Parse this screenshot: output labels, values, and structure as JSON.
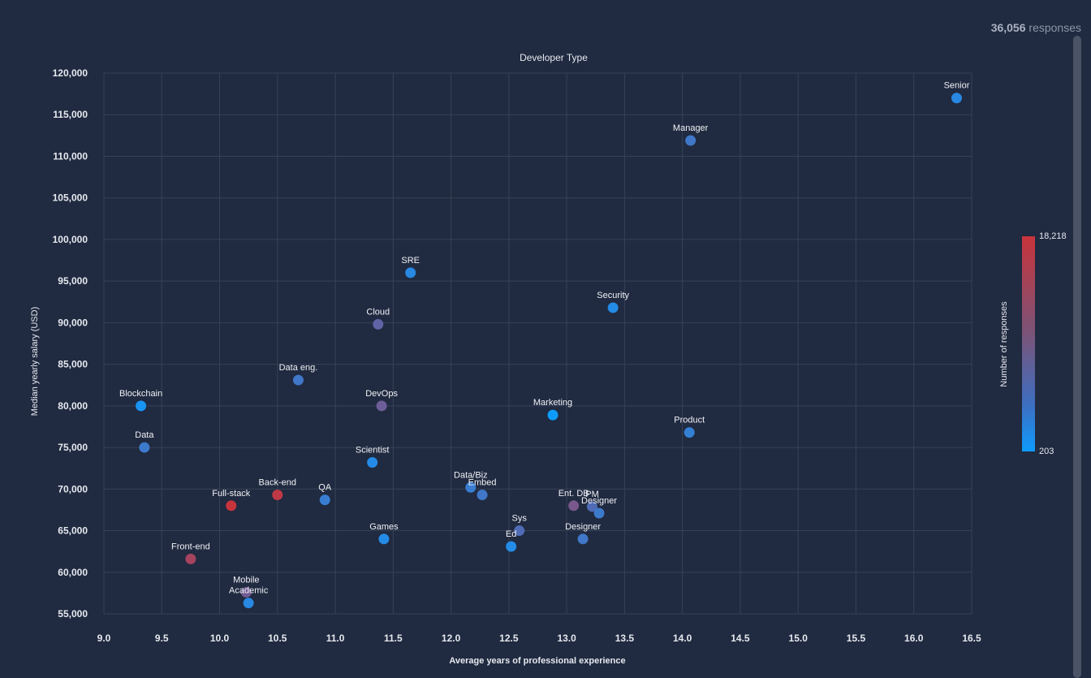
{
  "summary": {
    "count": "36,056",
    "unit": "responses"
  },
  "legend": {
    "title": "Number of responses",
    "max_label": "18,218",
    "min_label": "203"
  },
  "colors": {
    "background": "#202a40",
    "grid": "#364257",
    "high": "#c8343c",
    "mid": "#7b5478",
    "low": "#0e9bff"
  },
  "chart_data": {
    "type": "scatter",
    "title": "Developer Type",
    "xlabel": "Average years of professional experience",
    "ylabel": "Median yearly salary (USD)",
    "xlim": [
      9.0,
      16.5
    ],
    "ylim": [
      55000,
      120000
    ],
    "x_ticks": [
      "9.0",
      "9.5",
      "10.0",
      "10.5",
      "11.0",
      "11.5",
      "12.0",
      "12.5",
      "13.0",
      "13.5",
      "14.0",
      "14.5",
      "15.0",
      "15.5",
      "16.0",
      "16.5"
    ],
    "y_ticks": [
      "55,000",
      "60,000",
      "65,000",
      "70,000",
      "75,000",
      "80,000",
      "85,000",
      "90,000",
      "95,000",
      "100,000",
      "105,000",
      "110,000",
      "115,000",
      "120,000"
    ],
    "color_scale": {
      "label": "Number of responses",
      "min": 203,
      "max": 18218
    },
    "points": [
      {
        "label": "Senior",
        "x": 16.37,
        "y": 117000,
        "responses": 3500
      },
      {
        "label": "Manager",
        "x": 14.07,
        "y": 111900,
        "responses": 6500
      },
      {
        "label": "SRE",
        "x": 11.65,
        "y": 96000,
        "responses": 3500
      },
      {
        "label": "Security",
        "x": 13.4,
        "y": 91800,
        "responses": 3000
      },
      {
        "label": "Cloud",
        "x": 11.37,
        "y": 89800,
        "responses": 10000
      },
      {
        "label": "Data eng.",
        "x": 10.68,
        "y": 83100,
        "responses": 6500
      },
      {
        "label": "Blockchain",
        "x": 9.32,
        "y": 80000,
        "responses": 1500
      },
      {
        "label": "DevOps",
        "x": 11.4,
        "y": 80000,
        "responses": 11000
      },
      {
        "label": "Marketing",
        "x": 12.88,
        "y": 78900,
        "responses": 203
      },
      {
        "label": "Product",
        "x": 14.06,
        "y": 76800,
        "responses": 5000
      },
      {
        "label": "Data",
        "x": 9.35,
        "y": 75000,
        "responses": 6000
      },
      {
        "label": "Scientist",
        "x": 11.32,
        "y": 73200,
        "responses": 3000
      },
      {
        "label": "Data/Biz",
        "x": 12.17,
        "y": 70200,
        "responses": 5500
      },
      {
        "label": "Embed",
        "x": 12.27,
        "y": 69300,
        "responses": 6500
      },
      {
        "label": "Back-end",
        "x": 10.5,
        "y": 69300,
        "responses": 17500
      },
      {
        "label": "QA",
        "x": 10.91,
        "y": 68700,
        "responses": 5500
      },
      {
        "label": "Full-stack",
        "x": 10.1,
        "y": 68000,
        "responses": 18218
      },
      {
        "label": "Ent. DB",
        "x": 13.06,
        "y": 68000,
        "responses": 12000
      },
      {
        "label": "PM",
        "x": 13.22,
        "y": 67900,
        "responses": 8500
      },
      {
        "label": "Designer",
        "x": 13.28,
        "y": 67100,
        "responses": 6000
      },
      {
        "label": "Sys",
        "x": 12.59,
        "y": 65000,
        "responses": 8500
      },
      {
        "label": "Games",
        "x": 11.42,
        "y": 64000,
        "responses": 3000
      },
      {
        "label": "Designer",
        "x": 13.14,
        "y": 64000,
        "responses": 6500
      },
      {
        "label": "Ed",
        "x": 12.52,
        "y": 63100,
        "responses": 3000
      },
      {
        "label": "Front-end",
        "x": 9.75,
        "y": 61600,
        "responses": 15500
      },
      {
        "label": "Mobile",
        "x": 10.23,
        "y": 57600,
        "responses": 11500
      },
      {
        "label": "Academic",
        "x": 10.25,
        "y": 56300,
        "responses": 3500
      }
    ]
  }
}
